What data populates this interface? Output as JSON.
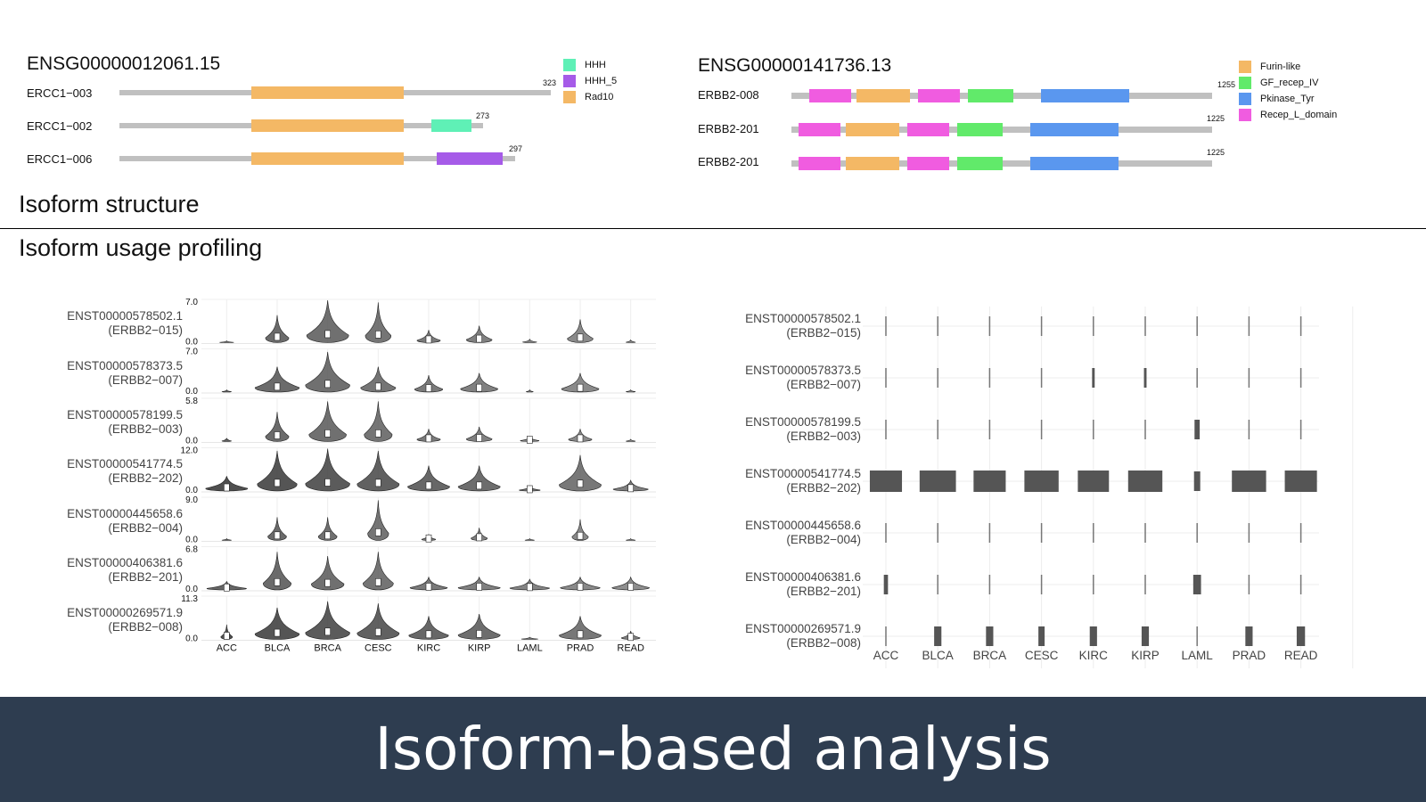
{
  "isoform_structure": {
    "section_title": "Isoform structure",
    "genes": [
      {
        "title": "ENSG00000012061.15",
        "legend": [
          {
            "name": "HHH",
            "color": "#5ff0b6"
          },
          {
            "name": "HHH_5",
            "color": "#a65be8"
          },
          {
            "name": "Rad10",
            "color": "#f4b865"
          }
        ],
        "isoforms": [
          {
            "name": "ERCC1−003",
            "length": "323",
            "domains": [
              "Rad10"
            ]
          },
          {
            "name": "ERCC1−002",
            "length": "273",
            "domains": [
              "Rad10",
              "HHH"
            ]
          },
          {
            "name": "ERCC1−006",
            "length": "297",
            "domains": [
              "Rad10",
              "HHH_5"
            ]
          }
        ]
      },
      {
        "title": "ENSG00000141736.13",
        "legend": [
          {
            "name": "Furin-like",
            "color": "#f4b865"
          },
          {
            "name": "GF_recep_IV",
            "color": "#61ea6a"
          },
          {
            "name": "Pkinase_Tyr",
            "color": "#5a97ef"
          },
          {
            "name": "Recep_L_domain",
            "color": "#f05ce0"
          }
        ],
        "isoforms": [
          {
            "name": "ERBB2-008",
            "length": "1255",
            "domains": [
              "Recep_L_domain",
              "Furin-like",
              "Recep_L_domain",
              "GF_recep_IV",
              "Pkinase_Tyr"
            ]
          },
          {
            "name": "ERBB2-201",
            "length": "1225",
            "domains": [
              "Recep_L_domain",
              "Furin-like",
              "Recep_L_domain",
              "GF_recep_IV",
              "Pkinase_Tyr"
            ]
          },
          {
            "name": "ERBB2-201",
            "length": "1225",
            "domains": [
              "Recep_L_domain",
              "Furin-like",
              "Recep_L_domain",
              "GF_recep_IV",
              "Pkinase_Tyr"
            ]
          }
        ]
      }
    ]
  },
  "usage_profiling": {
    "section_title": "Isoform usage profiling"
  },
  "footer": {
    "title": "Isoform-based analysis"
  },
  "chart_data": [
    {
      "type": "violin",
      "categories": [
        "ACC",
        "BLCA",
        "BRCA",
        "CESC",
        "KIRC",
        "KIRP",
        "LAML",
        "PRAD",
        "READ"
      ],
      "rows": [
        {
          "transcript": "ENST00000578502.1",
          "isoform": "(ERBB2−015)",
          "ymax": "7.0",
          "ymin": "0.0",
          "shade": "#555555",
          "heights": [
            0.02,
            0.65,
            1.0,
            0.95,
            0.3,
            0.4,
            0.08,
            0.55,
            0.06
          ],
          "widths": [
            0.3,
            0.5,
            0.9,
            0.55,
            0.5,
            0.55,
            0.3,
            0.55,
            0.2
          ]
        },
        {
          "transcript": "ENST00000578373.5",
          "isoform": "(ERBB2−007)",
          "ymax": "7.0",
          "ymin": "0.0",
          "shade": "#555555",
          "heights": [
            0.05,
            0.6,
            0.95,
            0.6,
            0.4,
            0.45,
            0.05,
            0.45,
            0.05
          ],
          "widths": [
            0.2,
            0.95,
            0.95,
            0.75,
            0.6,
            0.8,
            0.15,
            0.8,
            0.2
          ]
        },
        {
          "transcript": "ENST00000578199.5",
          "isoform": "(ERBB2−003)",
          "ymax": "5.8",
          "ymin": "0.0",
          "shade": "#555555",
          "heights": [
            0.08,
            0.7,
            0.95,
            0.95,
            0.3,
            0.35,
            0.12,
            0.3,
            0.05
          ],
          "widths": [
            0.2,
            0.5,
            0.8,
            0.6,
            0.5,
            0.55,
            0.4,
            0.5,
            0.2
          ]
        },
        {
          "transcript": "ENST00000541774.5",
          "isoform": "(ERBB2−202)",
          "ymax": "12.0",
          "ymin": "0.0",
          "shade": "#3c3c3c",
          "heights": [
            0.35,
            0.95,
            1.0,
            0.95,
            0.6,
            0.6,
            0.12,
            0.85,
            0.25
          ],
          "widths": [
            0.9,
            0.85,
            0.95,
            0.9,
            0.9,
            0.9,
            0.45,
            0.9,
            0.75
          ]
        },
        {
          "transcript": "ENST00000445658.6",
          "isoform": "(ERBB2−004)",
          "ymax": "9.0",
          "ymin": "0.0",
          "shade": "#555555",
          "heights": [
            0.03,
            0.55,
            0.55,
            0.95,
            0.15,
            0.3,
            0.04,
            0.5,
            0.04
          ],
          "widths": [
            0.2,
            0.4,
            0.4,
            0.45,
            0.3,
            0.35,
            0.2,
            0.35,
            0.2
          ]
        },
        {
          "transcript": "ENST00000406381.6",
          "isoform": "(ERBB2−201)",
          "ymax": "6.8",
          "ymin": "0.0",
          "shade": "#555555",
          "heights": [
            0.2,
            0.9,
            0.8,
            0.9,
            0.3,
            0.3,
            0.25,
            0.3,
            0.3
          ],
          "widths": [
            0.85,
            0.6,
            0.7,
            0.65,
            0.8,
            0.9,
            0.85,
            0.85,
            0.8
          ]
        },
        {
          "transcript": "ENST00000269571.9",
          "isoform": "(ERBB2−008)",
          "ymax": "11.3",
          "ymin": "0.0",
          "shade": "#3c3c3c",
          "heights": [
            0.35,
            0.75,
            0.9,
            0.85,
            0.55,
            0.6,
            0.05,
            0.55,
            0.2
          ],
          "widths": [
            0.25,
            0.95,
            0.95,
            0.9,
            0.85,
            0.9,
            0.35,
            0.9,
            0.4
          ]
        }
      ]
    },
    {
      "type": "bar",
      "categories": [
        "ACC",
        "BLCA",
        "BRCA",
        "CESC",
        "KIRC",
        "KIRP",
        "LAML",
        "PRAD",
        "READ"
      ],
      "rows": [
        {
          "transcript": "ENST00000578502.1",
          "isoform": "(ERBB2−015)",
          "values": [
            0.02,
            0.02,
            0.02,
            0.02,
            0.02,
            0.02,
            0.02,
            0.02,
            0.02
          ]
        },
        {
          "transcript": "ENST00000578373.5",
          "isoform": "(ERBB2−007)",
          "values": [
            0.02,
            0.02,
            0.02,
            0.02,
            0.05,
            0.05,
            0.02,
            0.02,
            0.02
          ]
        },
        {
          "transcript": "ENST00000578199.5",
          "isoform": "(ERBB2−003)",
          "values": [
            0.02,
            0.02,
            0.02,
            0.02,
            0.02,
            0.02,
            0.1,
            0.02,
            0.02
          ]
        },
        {
          "transcript": "ENST00000541774.5",
          "isoform": "(ERBB2−202)",
          "values": [
            0.62,
            0.7,
            0.62,
            0.66,
            0.6,
            0.66,
            0.12,
            0.66,
            0.62
          ]
        },
        {
          "transcript": "ENST00000445658.6",
          "isoform": "(ERBB2−004)",
          "values": [
            0.02,
            0.02,
            0.02,
            0.02,
            0.02,
            0.02,
            0.02,
            0.02,
            0.02
          ]
        },
        {
          "transcript": "ENST00000406381.6",
          "isoform": "(ERBB2−201)",
          "values": [
            0.08,
            0.02,
            0.02,
            0.02,
            0.02,
            0.02,
            0.15,
            0.02,
            0.02
          ]
        },
        {
          "transcript": "ENST00000269571.9",
          "isoform": "(ERBB2−008)",
          "values": [
            0.02,
            0.14,
            0.14,
            0.12,
            0.14,
            0.14,
            0.02,
            0.14,
            0.16
          ]
        }
      ]
    }
  ]
}
